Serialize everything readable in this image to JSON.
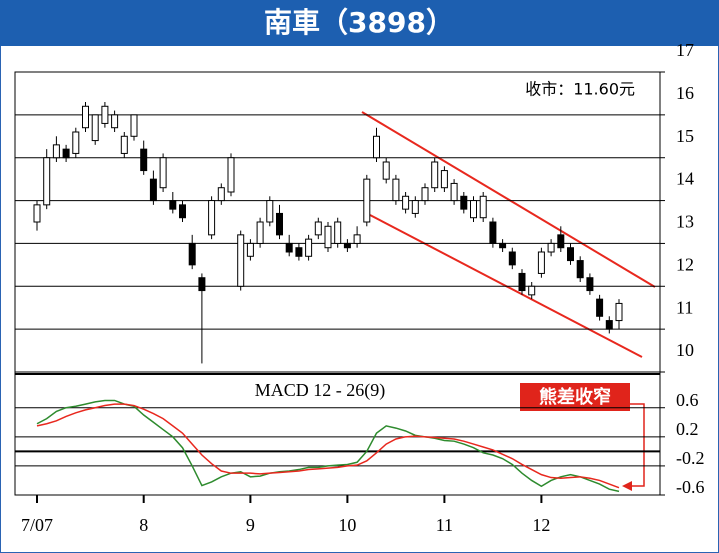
{
  "chart_data": [
    {
      "type": "candlestick",
      "title": "南車（3898）",
      "annotation": "收市：11.60元",
      "categories": [
        "7/07",
        null,
        null,
        null,
        null,
        null,
        null,
        null,
        null,
        null,
        null,
        "8",
        null,
        null,
        null,
        null,
        null,
        null,
        null,
        null,
        null,
        null,
        "9",
        null,
        null,
        null,
        null,
        null,
        null,
        null,
        null,
        null,
        "10",
        null,
        null,
        null,
        null,
        null,
        null,
        null,
        null,
        null,
        "11",
        null,
        null,
        null,
        null,
        null,
        null,
        null,
        null,
        null,
        "12",
        null,
        null,
        null,
        null,
        null,
        null,
        null,
        null
      ],
      "open": [
        13.5,
        13.9,
        15.0,
        15.2,
        15.1,
        15.7,
        15.4,
        15.8,
        15.7,
        15.1,
        15.5,
        15.2,
        14.5,
        14.3,
        14.0,
        13.9,
        13.0,
        12.2,
        13.2,
        14.0,
        14.2,
        12.0,
        12.7,
        13.0,
        13.5,
        13.7,
        13.0,
        12.9,
        12.7,
        13.2,
        12.9,
        13.0,
        13.0,
        13.0,
        13.5,
        15.0,
        14.5,
        14.0,
        13.8,
        13.7,
        14.0,
        14.3,
        14.3,
        14.0,
        14.1,
        13.6,
        13.6,
        13.5,
        13.0,
        12.8,
        12.3,
        11.8,
        12.3,
        12.8,
        13.2,
        12.9,
        12.6,
        12.2,
        11.7,
        11.2,
        11.2
      ],
      "high": [
        14.0,
        15.2,
        15.5,
        15.3,
        15.7,
        16.3,
        16.0,
        16.3,
        16.1,
        15.6,
        16.0,
        15.4,
        14.7,
        15.1,
        14.2,
        14.0,
        13.2,
        12.3,
        14.1,
        14.4,
        15.1,
        13.3,
        13.1,
        13.6,
        14.1,
        13.9,
        13.2,
        13.0,
        13.2,
        13.6,
        13.5,
        13.6,
        13.1,
        13.4,
        14.6,
        15.7,
        15.0,
        14.6,
        14.2,
        14.1,
        14.4,
        15.0,
        14.8,
        14.5,
        14.2,
        14.1,
        14.2,
        13.6,
        13.1,
        12.9,
        12.4,
        12.1,
        12.9,
        13.1,
        13.4,
        13.0,
        12.7,
        12.3,
        11.8,
        11.3,
        11.7
      ],
      "low": [
        13.3,
        13.8,
        14.9,
        14.9,
        15.0,
        15.6,
        15.3,
        15.7,
        15.6,
        15.0,
        15.4,
        14.6,
        13.9,
        14.2,
        13.7,
        13.5,
        12.4,
        10.2,
        13.1,
        13.9,
        14.1,
        11.9,
        12.6,
        12.9,
        13.4,
        13.1,
        12.7,
        12.6,
        12.6,
        13.1,
        12.8,
        12.9,
        12.8,
        12.9,
        13.4,
        14.9,
        14.4,
        13.9,
        13.7,
        13.6,
        13.9,
        14.2,
        14.2,
        13.9,
        13.7,
        13.5,
        13.5,
        12.9,
        12.8,
        12.4,
        11.8,
        11.7,
        12.2,
        12.7,
        12.8,
        12.5,
        12.1,
        11.8,
        11.2,
        10.9,
        11.0
      ],
      "close": [
        13.9,
        15.0,
        15.3,
        15.0,
        15.6,
        16.2,
        16.0,
        16.2,
        16.0,
        15.5,
        16.0,
        14.7,
        14.0,
        15.0,
        13.8,
        13.6,
        12.5,
        11.9,
        14.0,
        14.3,
        15.0,
        13.2,
        13.0,
        13.5,
        14.0,
        13.2,
        12.8,
        12.7,
        13.1,
        13.5,
        13.4,
        13.5,
        12.9,
        13.2,
        14.5,
        15.5,
        14.9,
        14.5,
        14.1,
        14.0,
        14.3,
        14.9,
        14.7,
        14.4,
        13.8,
        14.0,
        14.1,
        13.0,
        12.9,
        12.5,
        11.9,
        12.0,
        12.8,
        13.0,
        12.9,
        12.6,
        12.2,
        11.9,
        11.3,
        11.0,
        11.6
      ],
      "up_color": "#ffffff",
      "down_color": "#000000",
      "ylim": [
        10,
        17
      ],
      "yticks": [
        10,
        11,
        12,
        13,
        14,
        15,
        16,
        17
      ],
      "grid": true
    },
    {
      "type": "line",
      "title": "MACD 12 - 26(9)",
      "annotation": "熊差收窄",
      "series": [
        {
          "color": "#2e8b2e",
          "values": [
            0.38,
            0.45,
            0.55,
            0.6,
            0.62,
            0.65,
            0.68,
            0.7,
            0.7,
            0.65,
            0.62,
            0.5,
            0.4,
            0.3,
            0.2,
            0.05,
            -0.2,
            -0.47,
            -0.42,
            -0.35,
            -0.3,
            -0.28,
            -0.35,
            -0.34,
            -0.3,
            -0.28,
            -0.27,
            -0.25,
            -0.22,
            -0.22,
            -0.2,
            -0.19,
            -0.18,
            -0.15,
            0.0,
            0.25,
            0.35,
            0.32,
            0.28,
            0.22,
            0.2,
            0.18,
            0.15,
            0.14,
            0.1,
            0.05,
            -0.02,
            -0.05,
            -0.1,
            -0.18,
            -0.3,
            -0.4,
            -0.48,
            -0.4,
            -0.35,
            -0.32,
            -0.35,
            -0.4,
            -0.45,
            -0.52,
            -0.55
          ]
        },
        {
          "color": "#e8281e",
          "values": [
            0.35,
            0.38,
            0.42,
            0.48,
            0.53,
            0.57,
            0.6,
            0.63,
            0.65,
            0.65,
            0.63,
            0.58,
            0.52,
            0.45,
            0.35,
            0.25,
            0.1,
            -0.05,
            -0.17,
            -0.27,
            -0.3,
            -0.3,
            -0.3,
            -0.31,
            -0.3,
            -0.29,
            -0.28,
            -0.27,
            -0.25,
            -0.24,
            -0.23,
            -0.22,
            -0.2,
            -0.19,
            -0.13,
            -0.02,
            0.1,
            0.17,
            0.2,
            0.21,
            0.2,
            0.19,
            0.18,
            0.17,
            0.14,
            0.1,
            0.06,
            0.02,
            -0.04,
            -0.1,
            -0.18,
            -0.25,
            -0.32,
            -0.36,
            -0.37,
            -0.36,
            -0.35,
            -0.37,
            -0.4,
            -0.45,
            -0.5
          ]
        }
      ],
      "ylim": [
        -0.6,
        1.05
      ],
      "yticks": [
        -0.6,
        -0.2,
        0.2,
        0.6
      ],
      "grid": true
    }
  ]
}
